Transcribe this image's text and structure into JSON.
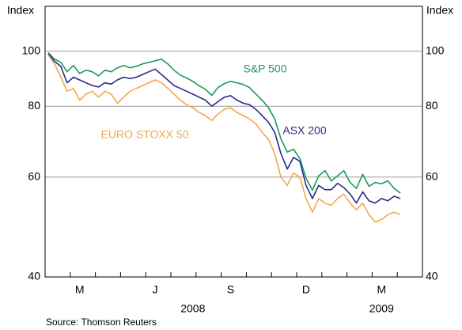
{
  "chart_data": {
    "type": "line",
    "y_axis_label": "Index",
    "y2_axis_label": "Index",
    "source": "Source: Thomson Reuters",
    "year_labels": [
      "2008",
      "2009"
    ],
    "log_scale": true,
    "grid": true,
    "ylim": [
      40,
      120
    ],
    "yticks": [
      40,
      60,
      80,
      100
    ],
    "categories": [
      null,
      null,
      null,
      null,
      null,
      "M",
      null,
      null,
      null,
      null,
      null,
      null,
      null,
      null,
      null,
      null,
      null,
      "J",
      null,
      null,
      null,
      null,
      null,
      null,
      null,
      null,
      null,
      null,
      null,
      "S",
      null,
      null,
      null,
      null,
      null,
      null,
      null,
      null,
      null,
      null,
      null,
      "D",
      null,
      null,
      null,
      null,
      null,
      null,
      null,
      null,
      null,
      null,
      null,
      "M",
      null,
      null,
      null,
      null,
      null,
      null
    ],
    "series": [
      {
        "name": "S&P 500",
        "color": "#1a9b5b",
        "values": [
          99.4,
          96.8,
          95.6,
          92.0,
          94.4,
          91.4,
          92.6,
          92.0,
          90.5,
          92.6,
          92.0,
          93.5,
          94.4,
          93.5,
          94.1,
          95.0,
          95.6,
          96.2,
          96.8,
          95.0,
          92.6,
          90.8,
          89.7,
          88.5,
          86.9,
          85.7,
          83.6,
          86.3,
          87.7,
          88.5,
          88.0,
          87.4,
          86.3,
          84.1,
          82.0,
          79.6,
          76.0,
          70.1,
          66.4,
          67.2,
          64.7,
          59.7,
          56.9,
          60.3,
          61.6,
          59.1,
          60.3,
          61.6,
          58.7,
          57.3,
          60.7,
          57.8,
          58.7,
          58.4,
          59.1,
          57.3,
          56.2,
          null,
          null,
          null
        ]
      },
      {
        "name": "ASX 200",
        "color": "#2b2a8a",
        "values": [
          99.0,
          96,
          94,
          88,
          90,
          89,
          88,
          87,
          86.5,
          88,
          87.5,
          89,
          90,
          89.5,
          90,
          91,
          92,
          93,
          91,
          89,
          87,
          86,
          85,
          84,
          83,
          82,
          80,
          81.5,
          83,
          83.5,
          82,
          81,
          80.5,
          79,
          77,
          75,
          72,
          66,
          62,
          65,
          64,
          58,
          55,
          58,
          57,
          57,
          58.5,
          57.5,
          56,
          54,
          56.5,
          54.5,
          54,
          55,
          54.5,
          55.5,
          55,
          null,
          null,
          null
        ]
      },
      {
        "name": "EURO STOXX 50",
        "color": "#f5a74a",
        "values": [
          98.5,
          95,
          90,
          85,
          86,
          82,
          84,
          85,
          83,
          85,
          84,
          81,
          83,
          85,
          86,
          87,
          88,
          89,
          88,
          86,
          84,
          82,
          80.5,
          79.5,
          78,
          77,
          75.5,
          77.5,
          79,
          79.5,
          78,
          77,
          76,
          74.5,
          72,
          70,
          66,
          60,
          58,
          61,
          60,
          55,
          52,
          55,
          54,
          53.5,
          55,
          56,
          54,
          52.5,
          54,
          51.5,
          50,
          50.5,
          51.5,
          52,
          51.5,
          null,
          null,
          null
        ]
      }
    ]
  }
}
